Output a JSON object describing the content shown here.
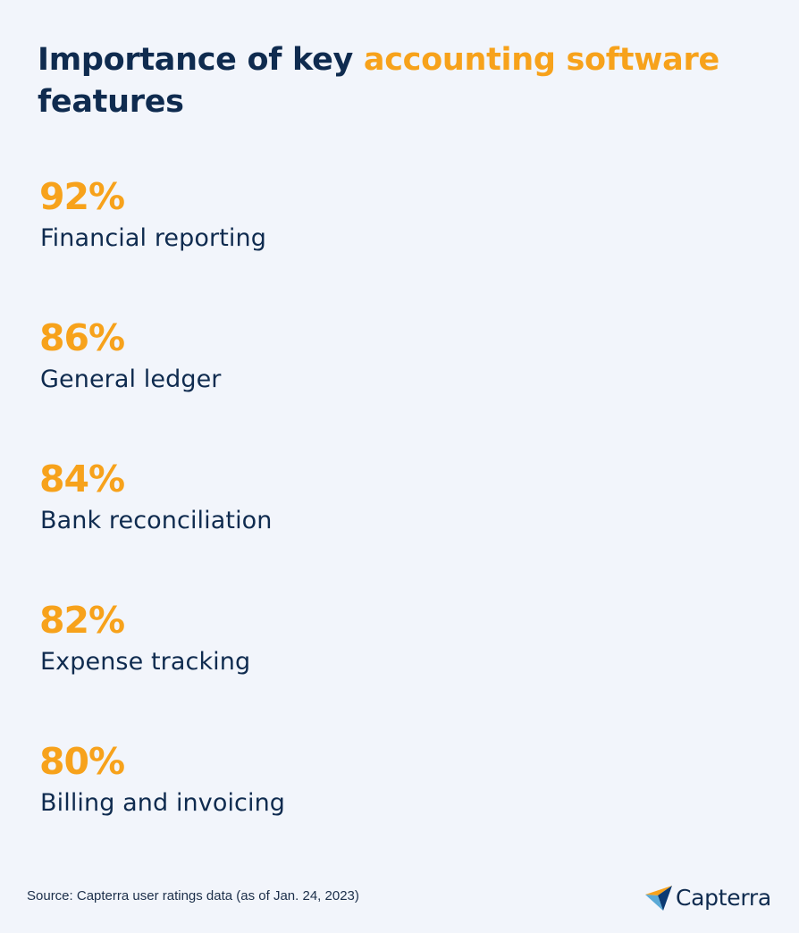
{
  "title": {
    "part1": "Importance of key ",
    "highlight": "accounting software",
    "part2": "features"
  },
  "colors": {
    "background": "#f2f5fb",
    "bar_fill": "#0b3a73",
    "bar_empty": "#ffffff",
    "accent": "#f7a21b",
    "text": "#0f2b4f"
  },
  "chart_data": {
    "type": "bar",
    "orientation": "horizontal",
    "categories": [
      "Financial reporting",
      "General ledger",
      "Bank reconciliation",
      "Expense tracking",
      "Billing and invoicing"
    ],
    "values": [
      92,
      86,
      84,
      82,
      80
    ],
    "value_labels": [
      "92%",
      "86%",
      "84%",
      "82%",
      "80%"
    ],
    "xlim": [
      0,
      100
    ],
    "title": "Importance of key accounting software features"
  },
  "footer": {
    "source": "Source: Capterra user ratings data (as of Jan. 24, 2023)",
    "logo_text": "Capterra",
    "logo_icon": "capterra-arrow-icon"
  }
}
